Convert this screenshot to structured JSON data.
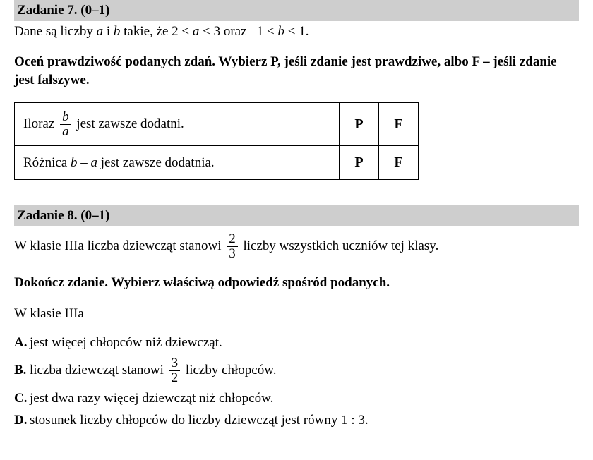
{
  "task7": {
    "header": "Zadanie 7. (0–1)",
    "given_pre": "Dane są liczby ",
    "a": "a",
    "given_mid1": " i ",
    "b": "b",
    "given_mid2": " takie, że 2 < ",
    "a2": "a",
    "given_mid3": " < 3 oraz  –1 < ",
    "b2": "b",
    "given_end": " < 1.",
    "instruction": "Oceń prawdziwość podanych zdań. Wybierz P, jeśli zdanie jest prawdziwe, albo F – jeśli zdanie jest fałszywe.",
    "row1": {
      "pre": "Iloraz  ",
      "frac_num": "b",
      "frac_den": "a",
      "post": "  jest zawsze dodatni.",
      "P": "P",
      "F": "F"
    },
    "row2": {
      "pre": "Różnica  ",
      "expr_b": "b",
      "expr_mid": " – ",
      "expr_a": "a",
      "post": "  jest zawsze dodatnia.",
      "P": "P",
      "F": "F"
    }
  },
  "task8": {
    "header": "Zadanie 8. (0–1)",
    "intro_pre": "W klasie IIIa  liczba dziewcząt stanowi ",
    "frac_num": "2",
    "frac_den": "3",
    "intro_post": " liczby wszystkich uczniów tej klasy.",
    "instruction": "Dokończ zdanie. Wybierz właściwą odpowiedź spośród podanych.",
    "inclass": "W klasie IIIa",
    "A": {
      "letter": "A.",
      "text": "jest więcej chłopców niż dziewcząt."
    },
    "B": {
      "letter": "B.",
      "pre": "liczba dziewcząt stanowi ",
      "frac_num": "3",
      "frac_den": "2",
      "post": " liczby chłopców."
    },
    "C": {
      "letter": "C.",
      "text": "jest dwa razy więcej dziewcząt niż chłopców."
    },
    "D": {
      "letter": "D.",
      "text": "stosunek liczby chłopców do liczby dziewcząt jest równy 1 : 3."
    }
  }
}
